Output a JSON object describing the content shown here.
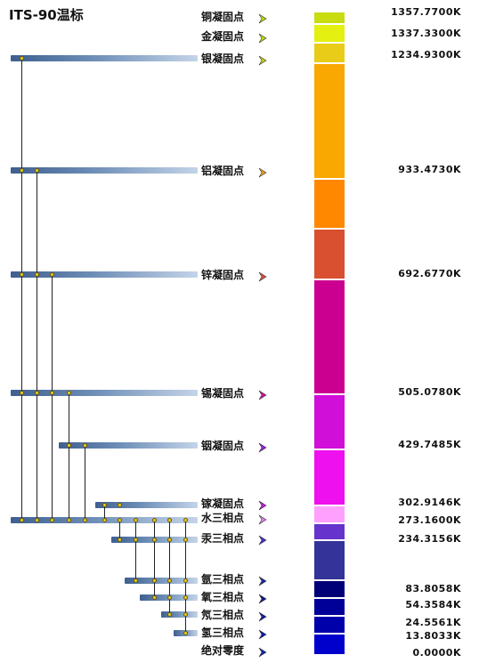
{
  "title": "ITS-90温标",
  "points": [
    {
      "label": "铜凝固点",
      "value": "1357.7700K",
      "arrow": "#b8dc10"
    },
    {
      "label": "金凝固点",
      "value": "1337.3300K",
      "arrow": "#b8dc10"
    },
    {
      "label": "银凝固点",
      "value": "1234.9300K",
      "arrow": "#c8d018"
    },
    {
      "label": "铝凝固点",
      "value": "933.4730K",
      "arrow": "#e8a020"
    },
    {
      "label": "锌凝固点",
      "value": "692.6770K",
      "arrow": "#d85040"
    },
    {
      "label": "锡凝固点",
      "value": "505.0780K",
      "arrow": "#cc10a0"
    },
    {
      "label": "铟凝固点",
      "value": "429.7485K",
      "arrow": "#9a20e0"
    },
    {
      "label": "镓凝固点",
      "value": "302.9146K",
      "arrow": "#c020d8"
    },
    {
      "label": "水三相点",
      "value": "273.1600K",
      "arrow": "#e080f0"
    },
    {
      "label": "汞三相点",
      "value": "234.3156K",
      "arrow": "#4a30c8"
    },
    {
      "label": "氩三相点",
      "value": "83.8058K",
      "arrow": "#1a2a9a"
    },
    {
      "label": "氧三相点",
      "value": "54.3584K",
      "arrow": "#101a80"
    },
    {
      "label": "氖三相点",
      "value": "24.5561K",
      "arrow": "#1020a0"
    },
    {
      "label": "氢三相点",
      "value": "13.8033K",
      "arrow": "#0818b0"
    },
    {
      "label": "绝对零度",
      "value": "0.0000K",
      "arrow": "#1828a8"
    }
  ],
  "colors": {
    "bands": [
      "#c8dc10",
      "#e4f010",
      "#e8cc18",
      "#f8a800",
      "#ff8800",
      "#d85030",
      "#cc0090",
      "#d010d8",
      "#ee10ee",
      "#ffa0ff",
      "#6633cc",
      "#333399",
      "#000077",
      "#000099",
      "#0000aa",
      "#0000cc"
    ]
  }
}
